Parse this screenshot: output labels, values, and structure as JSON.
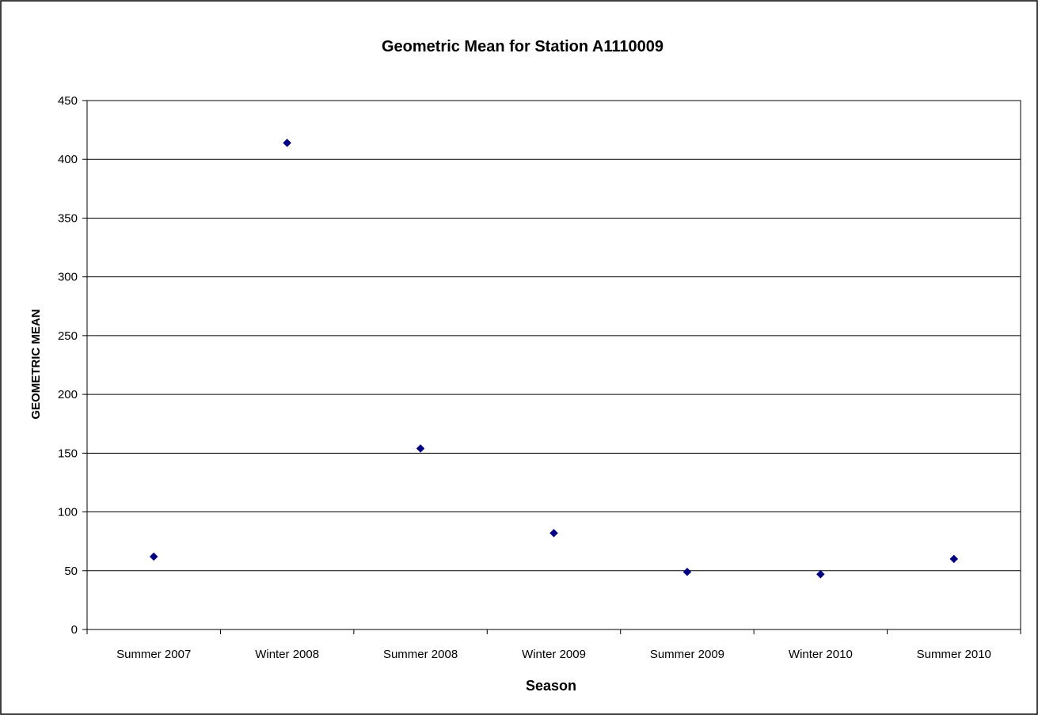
{
  "chart_data": {
    "type": "scatter",
    "title": "Geometric Mean for Station A1110009",
    "xlabel": "Season",
    "ylabel": "GEOMETRIC MEAN",
    "categories": [
      "Summer  2007",
      "Winter  2008",
      "Summer 2008",
      "Winter 2009",
      "Summer 2009",
      "Winter 2010",
      "Summer 2010"
    ],
    "series": [
      {
        "values": [
          62,
          414,
          154,
          82,
          49,
          47,
          60
        ]
      }
    ],
    "ylim": [
      0,
      450
    ],
    "yticks": [
      0,
      50,
      100,
      150,
      200,
      250,
      300,
      350,
      400,
      450
    ],
    "grid": true,
    "legend": "none",
    "marker": "diamond",
    "colors": {
      "marker": "#000080",
      "gridline": "#000000",
      "axis": "#000000",
      "frame": "#000000",
      "background": "#ffffff"
    }
  }
}
